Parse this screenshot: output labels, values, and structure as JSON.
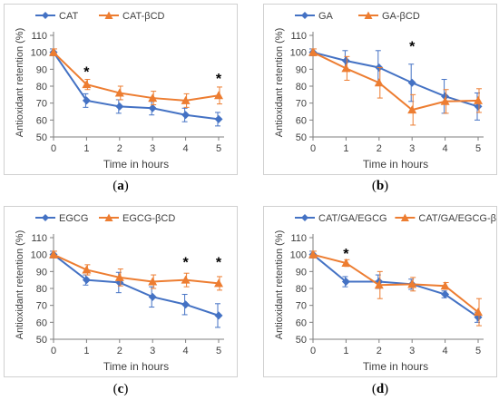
{
  "colors": {
    "series1": "#4472C4",
    "series2": "#ED7D31",
    "axis": "#7f7f7f",
    "grid": "#d9d9d9",
    "text": "#404040",
    "star": "#000000"
  },
  "chart_data": [
    {
      "type": "line",
      "caption": "a",
      "x": [
        0,
        1,
        2,
        3,
        4,
        5
      ],
      "xlabel": "Time in hours",
      "ylabel": "Antioxidant retention (%)",
      "ylim": [
        50,
        110
      ],
      "yticks": [
        50,
        60,
        70,
        80,
        90,
        100,
        110
      ],
      "legend": "top",
      "series": [
        {
          "name": "CAT",
          "marker": "diamond",
          "values": [
            100,
            71.5,
            68,
            67,
            63,
            60.5
          ],
          "errors": [
            2,
            4,
            4,
            4,
            4,
            4
          ]
        },
        {
          "name": "CAT-βCD",
          "marker": "triangle",
          "values": [
            100,
            81,
            76,
            73,
            71.5,
            74.5
          ],
          "errors": [
            2,
            3,
            4,
            4,
            4,
            5
          ]
        }
      ],
      "significance": [
        {
          "x": 1,
          "label": "*",
          "y": 90
        },
        {
          "x": 5,
          "label": "*",
          "y": 86
        }
      ]
    },
    {
      "type": "line",
      "caption": "b",
      "x": [
        0,
        1,
        2,
        3,
        4,
        5
      ],
      "xlabel": "Time in hours",
      "ylabel": "Antioxidant retention (%)",
      "ylim": [
        50,
        110
      ],
      "yticks": [
        50,
        60,
        70,
        80,
        90,
        100,
        110
      ],
      "legend": "top",
      "series": [
        {
          "name": "GA",
          "marker": "diamond",
          "values": [
            100,
            95,
            91,
            82,
            74,
            68
          ],
          "errors": [
            2,
            6,
            10,
            11,
            10,
            8
          ]
        },
        {
          "name": "GA-βCD",
          "marker": "triangle",
          "values": [
            100,
            90.5,
            82,
            66,
            71,
            71.5
          ],
          "errors": [
            2,
            7,
            9,
            9,
            7,
            7
          ]
        }
      ],
      "significance": [
        {
          "x": 3,
          "label": "*",
          "y": 105
        }
      ]
    },
    {
      "type": "line",
      "caption": "c",
      "x": [
        0,
        1,
        2,
        3,
        4,
        5
      ],
      "xlabel": "Time in hours",
      "ylabel": "Antioxidant retention (%)",
      "ylim": [
        50,
        110
      ],
      "yticks": [
        50,
        60,
        70,
        80,
        90,
        100,
        110
      ],
      "legend": "top",
      "series": [
        {
          "name": "EGCG",
          "marker": "diamond",
          "values": [
            100,
            85,
            83.5,
            75,
            70.5,
            64
          ],
          "errors": [
            2,
            3,
            6,
            6,
            6,
            7
          ]
        },
        {
          "name": "EGCG-βCD",
          "marker": "triangle",
          "values": [
            100,
            91,
            86.5,
            84,
            85,
            83
          ],
          "errors": [
            2,
            3,
            5,
            4,
            4,
            4
          ]
        }
      ],
      "significance": [
        {
          "x": 4,
          "label": "*",
          "y": 97
        },
        {
          "x": 5,
          "label": "*",
          "y": 97
        }
      ]
    },
    {
      "type": "line",
      "caption": "d",
      "x": [
        0,
        1,
        2,
        3,
        4,
        5
      ],
      "xlabel": "Time in hours",
      "ylabel": "Antioxidant retention (%)",
      "ylim": [
        50,
        110
      ],
      "yticks": [
        50,
        60,
        70,
        80,
        90,
        100,
        110
      ],
      "legend": "top",
      "series": [
        {
          "name": "CAT/GA/EGCG",
          "marker": "diamond",
          "values": [
            100,
            84,
            84,
            82.5,
            76.5,
            63
          ],
          "errors": [
            2,
            3,
            4,
            3,
            2,
            3
          ]
        },
        {
          "name": "CAT/GA/EGCG-βCD",
          "marker": "triangle",
          "values": [
            100,
            95,
            82,
            82.5,
            81.5,
            66
          ],
          "errors": [
            2,
            2,
            8,
            4,
            2,
            8
          ]
        }
      ],
      "significance": [
        {
          "x": 1,
          "label": "*",
          "y": 102
        }
      ]
    }
  ]
}
